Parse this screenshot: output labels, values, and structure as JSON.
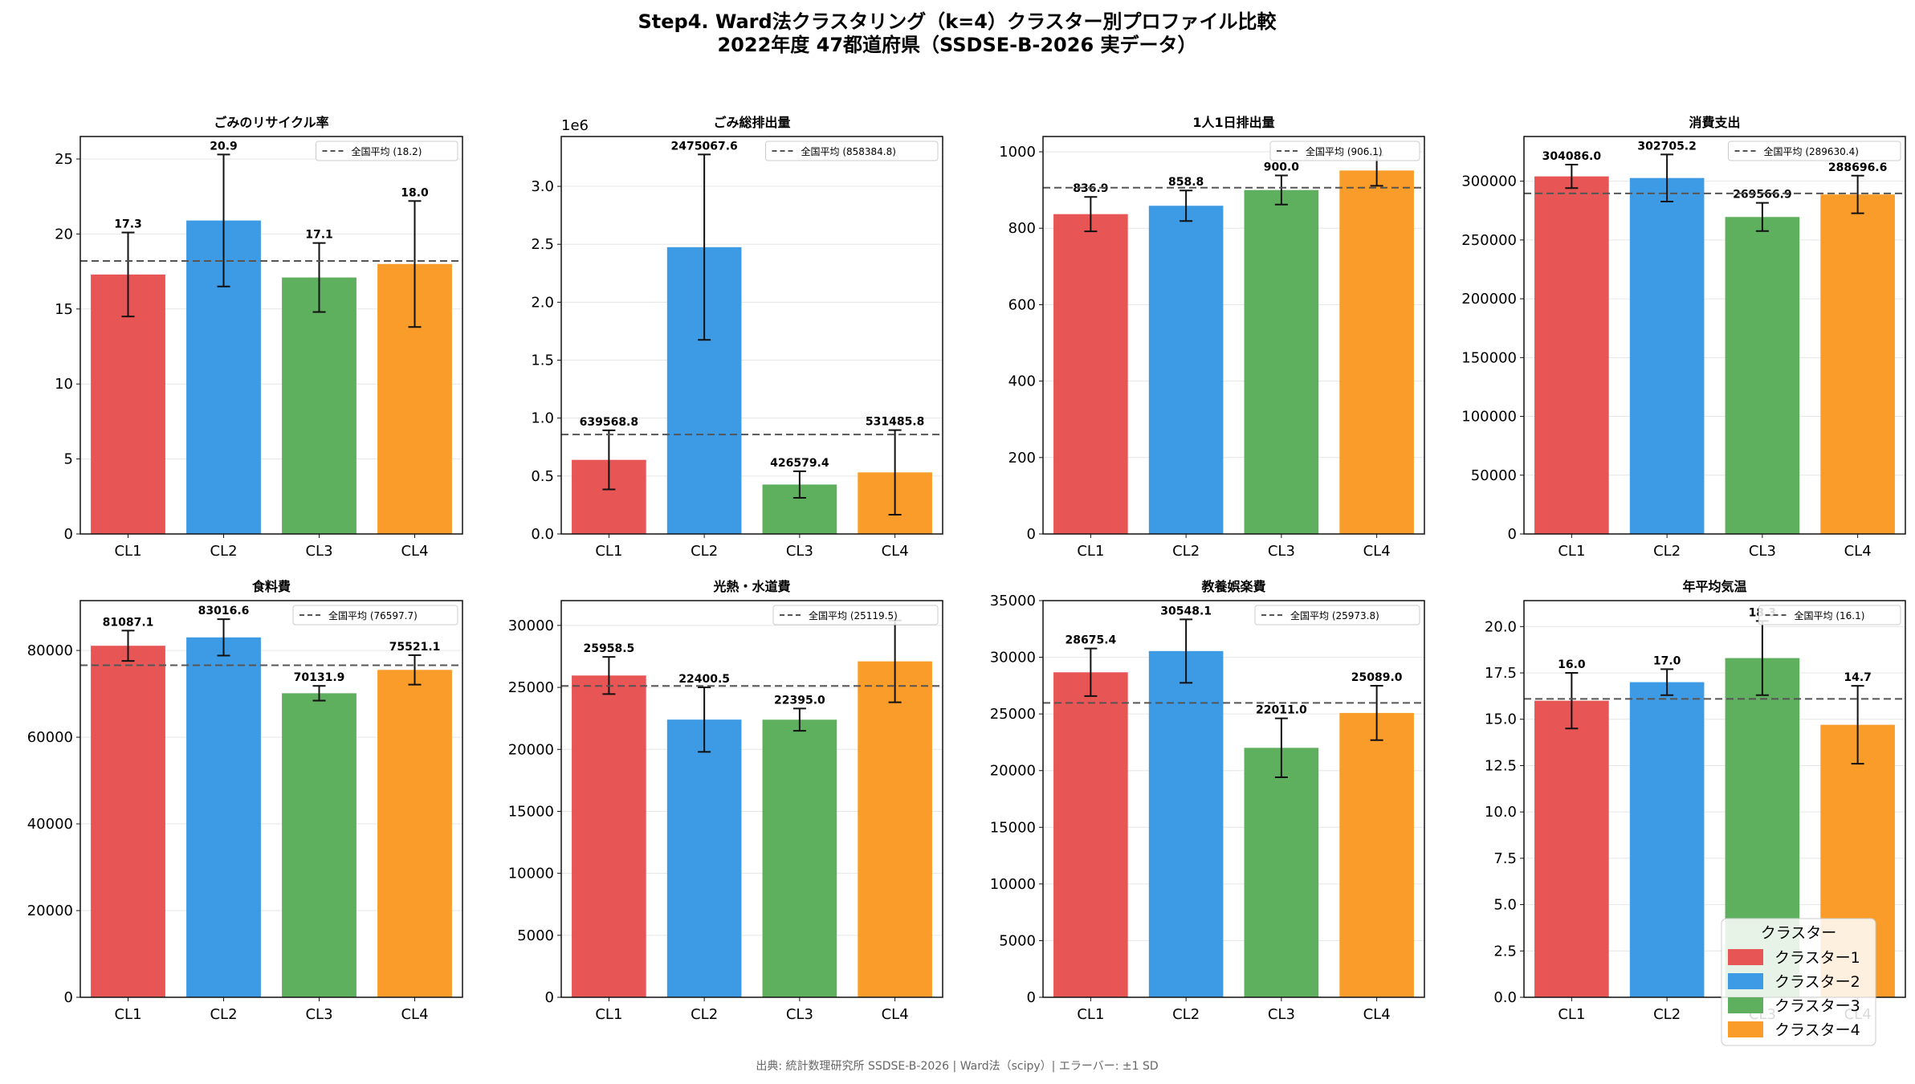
{
  "figure": {
    "title_line1": "Step4. Ward法クラスタリング（k=4）クラスター別プロファイル比較",
    "title_line2": "2022年度 47都道府県（SSDSE-B-2026 実データ）",
    "footer": "出典: 統計数理研究所 SSDSE-B-2026 | Ward法（scipy）| エラーバー: ±1 SD"
  },
  "legend": {
    "title": "クラスター",
    "placement": "lower-right",
    "items": [
      "クラスター1",
      "クラスター2",
      "クラスター3",
      "クラスター4"
    ]
  },
  "colors": {
    "cluster1": "#e85555",
    "cluster2": "#3d9be6",
    "cluster3": "#5eaf5e",
    "cluster4": "#f99c2a",
    "mean_line": "#555555",
    "grid": "#e6e6e6"
  },
  "chart_data": [
    {
      "type": "bar",
      "title": "ごみのリサイクル率",
      "categories": [
        "CL1",
        "CL2",
        "CL3",
        "CL4"
      ],
      "values": [
        17.3,
        20.9,
        17.1,
        18.0
      ],
      "errors": [
        2.8,
        4.4,
        2.3,
        4.2
      ],
      "value_labels": [
        "17.3",
        "20.9",
        "17.1",
        "18.0"
      ],
      "mean": 18.2,
      "mean_label": "全国平均 (18.2)",
      "ylim": [
        0,
        26.5
      ],
      "yticks": [
        0,
        5,
        10,
        15,
        20,
        25
      ],
      "ytick_labels": [
        "0",
        "5",
        "10",
        "15",
        "20",
        "25"
      ],
      "offset_text": ""
    },
    {
      "type": "bar",
      "title": "ごみ総排出量",
      "categories": [
        "CL1",
        "CL2",
        "CL3",
        "CL4"
      ],
      "values": [
        639568.8,
        2475067.6,
        426579.4,
        531485.8
      ],
      "errors": [
        255000,
        800000,
        115000,
        365000
      ],
      "value_labels": [
        "639568.8",
        "2475067.6",
        "426579.4",
        "531485.8"
      ],
      "mean": 858384.8,
      "mean_label": "全国平均 (858384.8)",
      "ylim": [
        0,
        3430000
      ],
      "yticks": [
        0,
        500000,
        1000000,
        1500000,
        2000000,
        2500000,
        3000000
      ],
      "ytick_labels": [
        "0.0",
        "0.5",
        "1.0",
        "1.5",
        "2.0",
        "2.5",
        "3.0"
      ],
      "offset_text": "1e6"
    },
    {
      "type": "bar",
      "title": "1人1日排出量",
      "categories": [
        "CL1",
        "CL2",
        "CL3",
        "CL4"
      ],
      "values": [
        836.9,
        858.8,
        900.0,
        951.0
      ],
      "errors": [
        45,
        40,
        38,
        40
      ],
      "value_labels": [
        "836.9",
        "858.8",
        "900.0",
        ""
      ],
      "mean": 906.1,
      "mean_label": "全国平均 (906.1)",
      "ylim": [
        0,
        1040
      ],
      "yticks": [
        0,
        200,
        400,
        600,
        800,
        1000
      ],
      "ytick_labels": [
        "0",
        "200",
        "400",
        "600",
        "800",
        "1000"
      ],
      "offset_text": ""
    },
    {
      "type": "bar",
      "title": "消費支出",
      "categories": [
        "CL1",
        "CL2",
        "CL3",
        "CL4"
      ],
      "values": [
        304086.0,
        302705.2,
        269566.9,
        288696.6
      ],
      "errors": [
        10000,
        20000,
        12000,
        16000
      ],
      "value_labels": [
        "304086.0",
        "302705.2",
        "269566.9",
        "288696.6"
      ],
      "mean": 289630.4,
      "mean_label": "全国平均 (289630.4)",
      "ylim": [
        0,
        338000
      ],
      "yticks": [
        0,
        50000,
        100000,
        150000,
        200000,
        250000,
        300000
      ],
      "ytick_labels": [
        "0",
        "50000",
        "100000",
        "150000",
        "200000",
        "250000",
        "300000"
      ],
      "offset_text": ""
    },
    {
      "type": "bar",
      "title": "食料費",
      "categories": [
        "CL1",
        "CL2",
        "CL3",
        "CL4"
      ],
      "values": [
        81087.1,
        83016.6,
        70131.9,
        75521.1
      ],
      "errors": [
        3500,
        4200,
        1700,
        3400
      ],
      "value_labels": [
        "81087.1",
        "83016.6",
        "70131.9",
        "75521.1"
      ],
      "mean": 76597.7,
      "mean_label": "全国平均 (76597.7)",
      "ylim": [
        0,
        91500
      ],
      "yticks": [
        0,
        20000,
        40000,
        60000,
        80000
      ],
      "ytick_labels": [
        "0",
        "20000",
        "40000",
        "60000",
        "80000"
      ],
      "offset_text": ""
    },
    {
      "type": "bar",
      "title": "光熱・水道費",
      "categories": [
        "CL1",
        "CL2",
        "CL3",
        "CL4"
      ],
      "values": [
        25958.5,
        22400.5,
        22395.0,
        27100.0
      ],
      "errors": [
        1500,
        2600,
        900,
        3300
      ],
      "value_labels": [
        "25958.5",
        "22400.5",
        "22395.0",
        ""
      ],
      "mean": 25119.5,
      "mean_label": "全国平均 (25119.5)",
      "ylim": [
        0,
        32000
      ],
      "yticks": [
        0,
        5000,
        10000,
        15000,
        20000,
        25000,
        30000
      ],
      "ytick_labels": [
        "0",
        "5000",
        "10000",
        "15000",
        "20000",
        "25000",
        "30000"
      ],
      "offset_text": ""
    },
    {
      "type": "bar",
      "title": "教養娯楽費",
      "categories": [
        "CL1",
        "CL2",
        "CL3",
        "CL4"
      ],
      "values": [
        28675.4,
        30548.1,
        22011.0,
        25089.0
      ],
      "errors": [
        2100,
        2800,
        2600,
        2400
      ],
      "value_labels": [
        "28675.4",
        "30548.1",
        "22011.0",
        "25089.0"
      ],
      "mean": 25973.8,
      "mean_label": "全国平均 (25973.8)",
      "ylim": [
        0,
        35000
      ],
      "yticks": [
        0,
        5000,
        10000,
        15000,
        20000,
        25000,
        30000,
        35000
      ],
      "ytick_labels": [
        "0",
        "5000",
        "10000",
        "15000",
        "20000",
        "25000",
        "30000",
        "35000"
      ],
      "offset_text": ""
    },
    {
      "type": "bar",
      "title": "年平均気温",
      "categories": [
        "CL1",
        "CL2",
        "CL3",
        "CL4"
      ],
      "values": [
        16.0,
        17.0,
        18.3,
        14.7
      ],
      "errors": [
        1.5,
        0.7,
        2.0,
        2.1
      ],
      "value_labels": [
        "16.0",
        "17.0",
        "18.3",
        "14.7"
      ],
      "mean": 16.1,
      "mean_label": "全国平均 (16.1)",
      "ylim": [
        0,
        21.4
      ],
      "yticks": [
        0,
        2.5,
        5.0,
        7.5,
        10.0,
        12.5,
        15.0,
        17.5,
        20.0
      ],
      "ytick_labels": [
        "0.0",
        "2.5",
        "5.0",
        "7.5",
        "10.0",
        "12.5",
        "15.0",
        "17.5",
        "20.0"
      ],
      "offset_text": ""
    }
  ]
}
